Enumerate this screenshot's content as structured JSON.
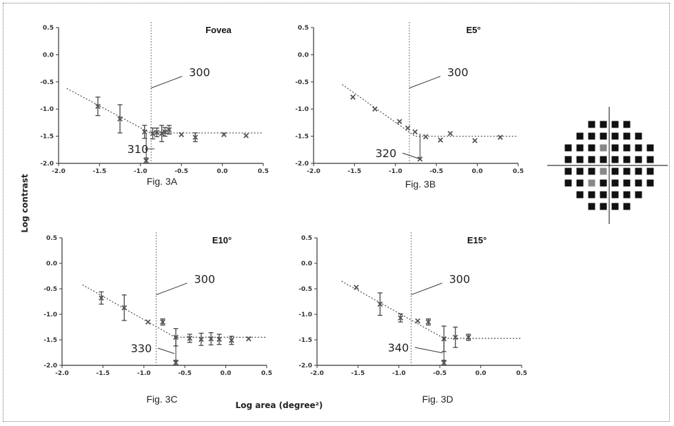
{
  "figure": {
    "ylabel": "Log contrast",
    "xlabel": "Log area (degree²)",
    "xticks": [
      "-2.0",
      "-1.5",
      "-1.0",
      "-0.5",
      "0.0",
      "0.5"
    ],
    "yticks": [
      "0.5",
      "0.0",
      "-0.5",
      "-1.0",
      "-1.5",
      "-2.0"
    ]
  },
  "chart_data": [
    {
      "type": "scatter",
      "panel": "Fig. 3A",
      "title": "Fovea",
      "xlim": [
        -2.0,
        0.5
      ],
      "ylim": [
        -2.0,
        0.5
      ],
      "critical_x": -0.87,
      "callout_vline": "300",
      "callout_point": "310",
      "fit": [
        [
          -1.9,
          -0.62
        ],
        [
          -0.88,
          -1.44
        ],
        [
          0.5,
          -1.44
        ]
      ],
      "points": [
        {
          "x": -1.52,
          "y": -0.95,
          "err": 0.17
        },
        {
          "x": -1.25,
          "y": -1.18,
          "err": 0.26
        },
        {
          "x": -0.95,
          "y": -1.42,
          "err": 0.12
        },
        {
          "x": -0.93,
          "y": -1.95,
          "err": 0.05
        },
        {
          "x": -0.85,
          "y": -1.45,
          "err": 0.1
        },
        {
          "x": -0.8,
          "y": -1.43,
          "err": 0.08
        },
        {
          "x": -0.74,
          "y": -1.45,
          "err": 0.15
        },
        {
          "x": -0.7,
          "y": -1.42,
          "err": 0.08
        },
        {
          "x": -0.65,
          "y": -1.38,
          "err": 0.08
        },
        {
          "x": -0.5,
          "y": -1.47,
          "err": 0
        },
        {
          "x": -0.33,
          "y": -1.52,
          "err": 0.08
        },
        {
          "x": 0.02,
          "y": -1.47,
          "err": 0
        },
        {
          "x": 0.29,
          "y": -1.49,
          "err": 0
        }
      ]
    },
    {
      "type": "scatter",
      "panel": "Fig. 3B",
      "title": "E5°",
      "xlim": [
        -2.0,
        0.5
      ],
      "ylim": [
        -2.0,
        0.5
      ],
      "critical_x": -0.83,
      "callout_vline": "300",
      "callout_point": "320",
      "fit": [
        [
          -1.65,
          -0.55
        ],
        [
          -0.76,
          -1.5
        ],
        [
          0.5,
          -1.5
        ]
      ],
      "points": [
        {
          "x": -1.52,
          "y": -0.78,
          "err": 0
        },
        {
          "x": -1.25,
          "y": -1.0,
          "err": 0
        },
        {
          "x": -0.95,
          "y": -1.23,
          "err": 0
        },
        {
          "x": -0.85,
          "y": -1.35,
          "err": 0
        },
        {
          "x": -0.76,
          "y": -1.42,
          "err": 0
        },
        {
          "x": -0.7,
          "y": -1.92,
          "err": 0
        },
        {
          "x": -0.63,
          "y": -1.51,
          "err": 0
        },
        {
          "x": -0.45,
          "y": -1.57,
          "err": 0
        },
        {
          "x": -0.33,
          "y": -1.45,
          "err": 0
        },
        {
          "x": -0.03,
          "y": -1.58,
          "err": 0
        },
        {
          "x": 0.28,
          "y": -1.52,
          "err": 0
        }
      ]
    },
    {
      "type": "scatter",
      "panel": "Fig. 3C",
      "title": "E10°",
      "xlim": [
        -2.0,
        0.5
      ],
      "ylim": [
        -2.0,
        0.5
      ],
      "critical_x": -0.85,
      "callout_vline": "300",
      "callout_point": "330",
      "fit": [
        [
          -1.75,
          -0.42
        ],
        [
          -0.62,
          -1.45
        ],
        [
          0.5,
          -1.45
        ]
      ],
      "points": [
        {
          "x": -1.52,
          "y": -0.68,
          "err": 0.12
        },
        {
          "x": -1.24,
          "y": -0.87,
          "err": 0.25
        },
        {
          "x": -0.95,
          "y": -1.15,
          "err": 0
        },
        {
          "x": -0.77,
          "y": -1.15,
          "err": 0.06
        },
        {
          "x": -0.61,
          "y": -1.45,
          "err": 0.17
        },
        {
          "x": -0.61,
          "y": -1.95,
          "err": 0.05
        },
        {
          "x": -0.44,
          "y": -1.47,
          "err": 0.08
        },
        {
          "x": -0.3,
          "y": -1.49,
          "err": 0.12
        },
        {
          "x": -0.18,
          "y": -1.48,
          "err": 0.12
        },
        {
          "x": -0.08,
          "y": -1.49,
          "err": 0.1
        },
        {
          "x": 0.07,
          "y": -1.51,
          "err": 0.08
        },
        {
          "x": 0.28,
          "y": -1.48,
          "err": 0
        }
      ]
    },
    {
      "type": "scatter",
      "panel": "Fig. 3D",
      "title": "E15°",
      "xlim": [
        -2.0,
        0.5
      ],
      "ylim": [
        -2.0,
        0.5
      ],
      "critical_x": -0.85,
      "callout_vline": "300",
      "callout_point": "340",
      "fit": [
        [
          -1.7,
          -0.35
        ],
        [
          -0.45,
          -1.47
        ],
        [
          0.5,
          -1.47
        ]
      ],
      "points": [
        {
          "x": -1.52,
          "y": -0.47,
          "err": 0
        },
        {
          "x": -1.23,
          "y": -0.8,
          "err": 0.22
        },
        {
          "x": -0.98,
          "y": -1.07,
          "err": 0.08
        },
        {
          "x": -0.77,
          "y": -1.13,
          "err": 0
        },
        {
          "x": -0.64,
          "y": -1.15,
          "err": 0.06
        },
        {
          "x": -0.45,
          "y": -1.48,
          "err": 0.25
        },
        {
          "x": -0.45,
          "y": -1.95,
          "err": 0.05
        },
        {
          "x": -0.31,
          "y": -1.45,
          "err": 0.2
        },
        {
          "x": -0.15,
          "y": -1.45,
          "err": 0.06
        }
      ]
    }
  ],
  "grid_legend": {
    "light_cells": [
      [
        2,
        4
      ],
      [
        4,
        4
      ],
      [
        5,
        3
      ]
    ]
  }
}
